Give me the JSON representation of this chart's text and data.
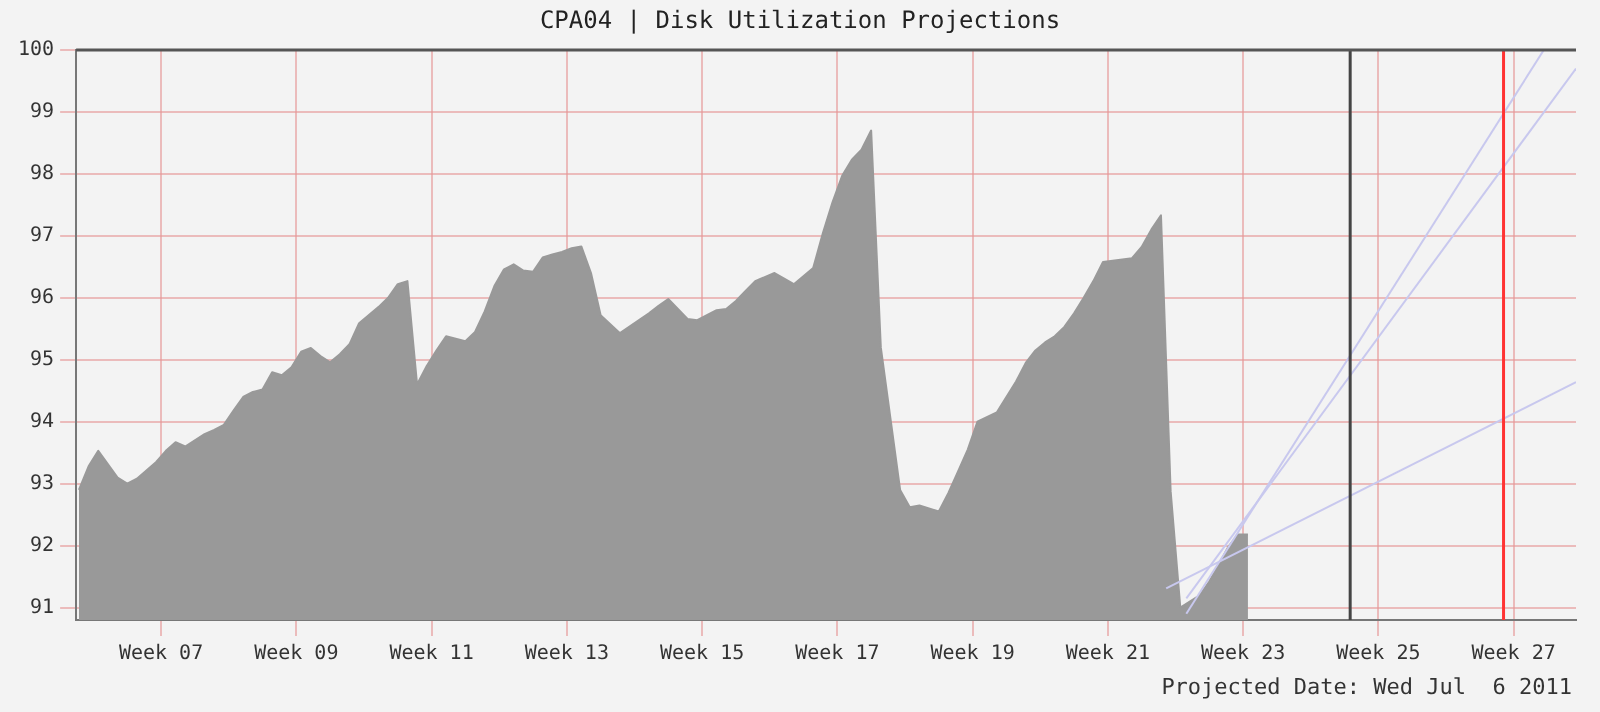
{
  "chart_data": {
    "type": "line",
    "title": "CPA04 | Disk Utilization Projections",
    "annotations": [
      "Projected Date: Wed Jul  6 2011"
    ],
    "xlim": [
      "2011-02-08T17:00",
      "2011-07-13T23:00"
    ],
    "xticks": [
      {
        "value": "2011-02-17T12:00",
        "label": "Week 07"
      },
      {
        "value": "2011-03-03T12:00",
        "label": "Week 09"
      },
      {
        "value": "2011-03-17T12:00",
        "label": "Week 11"
      },
      {
        "value": "2011-03-31T12:00",
        "label": "Week 13"
      },
      {
        "value": "2011-04-14T12:00",
        "label": "Week 15"
      },
      {
        "value": "2011-04-28T12:00",
        "label": "Week 17"
      },
      {
        "value": "2011-05-12T12:00",
        "label": "Week 19"
      },
      {
        "value": "2011-05-26T12:00",
        "label": "Week 21"
      },
      {
        "value": "2011-06-09T12:00",
        "label": "Week 23"
      },
      {
        "value": "2011-06-23T12:00",
        "label": "Week 25"
      },
      {
        "value": "2011-07-07T12:00",
        "label": "Week 27"
      }
    ],
    "ylim": [
      90.8,
      100
    ],
    "yticks": [
      91,
      92,
      93,
      94,
      95,
      96,
      97,
      98,
      99,
      100
    ],
    "grid": true,
    "legend": false,
    "marker": "none",
    "ref_lines": [
      {
        "axis": "x",
        "value": "2011-06-20T14:00",
        "color": "#444444"
      },
      {
        "axis": "x",
        "value": "2011-07-06T11:00",
        "color": "#ff3333"
      },
      {
        "axis": "y",
        "value": 100,
        "color": "#555555"
      }
    ],
    "series": [
      {
        "type": "area",
        "color": "#999999",
        "x": [
          "2011-02-09",
          "2011-02-10",
          "2011-02-11",
          "2011-02-13",
          "2011-02-14",
          "2011-02-15",
          "2011-02-17",
          "2011-02-18",
          "2011-02-19",
          "2011-02-20",
          "2011-02-22",
          "2011-02-23",
          "2011-02-24",
          "2011-02-25",
          "2011-02-26",
          "2011-02-27",
          "2011-02-28",
          "2011-03-01",
          "2011-03-02",
          "2011-03-03",
          "2011-03-04",
          "2011-03-05",
          "2011-03-06",
          "2011-03-07",
          "2011-03-08",
          "2011-03-09",
          "2011-03-10",
          "2011-03-12",
          "2011-03-13",
          "2011-03-14",
          "2011-03-15",
          "2011-03-16",
          "2011-03-17",
          "2011-03-18",
          "2011-03-19",
          "2011-03-21",
          "2011-03-22",
          "2011-03-23",
          "2011-03-24",
          "2011-03-25",
          "2011-03-26",
          "2011-03-27",
          "2011-03-28",
          "2011-03-29",
          "2011-03-30",
          "2011-03-31",
          "2011-04-01",
          "2011-04-02",
          "2011-04-03",
          "2011-04-04",
          "2011-04-06",
          "2011-04-09",
          "2011-04-10",
          "2011-04-11",
          "2011-04-13",
          "2011-04-14",
          "2011-04-16",
          "2011-04-17",
          "2011-04-18",
          "2011-04-19",
          "2011-04-20",
          "2011-04-22",
          "2011-04-24",
          "2011-04-26",
          "2011-04-27",
          "2011-04-28",
          "2011-04-29",
          "2011-04-30",
          "2011-05-01",
          "2011-05-02",
          "2011-05-03",
          "2011-05-05",
          "2011-05-06",
          "2011-05-07",
          "2011-05-09",
          "2011-05-10",
          "2011-05-11",
          "2011-05-12",
          "2011-05-13",
          "2011-05-15",
          "2011-05-16",
          "2011-05-17",
          "2011-05-18",
          "2011-05-19",
          "2011-05-20",
          "2011-05-21",
          "2011-05-22",
          "2011-05-23",
          "2011-05-24",
          "2011-05-25",
          "2011-05-26",
          "2011-05-29",
          "2011-05-30",
          "2011-05-31",
          "2011-06-01",
          "2011-06-02",
          "2011-06-03",
          "2011-06-05",
          "2011-06-06",
          "2011-06-07",
          "2011-06-08",
          "2011-06-09",
          "2011-06-10"
        ],
        "values": [
          92.9,
          93.28,
          93.53,
          93.1,
          93.0,
          93.08,
          93.35,
          93.53,
          93.67,
          93.6,
          93.8,
          93.87,
          93.95,
          94.18,
          94.4,
          94.48,
          94.52,
          94.8,
          94.75,
          94.88,
          95.13,
          95.19,
          95.06,
          94.96,
          95.09,
          95.25,
          95.59,
          95.85,
          96.0,
          96.22,
          96.27,
          94.6,
          94.9,
          95.15,
          95.38,
          95.3,
          95.45,
          95.78,
          96.19,
          96.46,
          96.54,
          96.44,
          96.42,
          96.65,
          96.7,
          96.74,
          96.8,
          96.83,
          96.4,
          95.72,
          95.43,
          95.75,
          95.87,
          95.98,
          95.66,
          95.64,
          95.8,
          95.82,
          95.95,
          96.11,
          96.27,
          96.4,
          96.22,
          96.48,
          97.04,
          97.54,
          97.97,
          98.23,
          98.39,
          98.7,
          95.2,
          92.9,
          92.62,
          92.65,
          92.55,
          92.85,
          93.2,
          93.55,
          94.0,
          94.15,
          94.4,
          94.65,
          94.95,
          95.15,
          95.28,
          95.38,
          95.53,
          95.75,
          96.0,
          96.27,
          96.58,
          96.64,
          96.82,
          97.1,
          97.33,
          92.88,
          91.0,
          91.2,
          91.42,
          91.7,
          91.99,
          92.18,
          92.18
        ]
      },
      {
        "type": "line",
        "color": "#c8c8ee",
        "x": [
          "2011-06-01T13:00",
          "2011-07-13T23:00"
        ],
        "values": [
          91.31,
          94.64
        ]
      },
      {
        "type": "line",
        "color": "#c8c8ee",
        "x": [
          "2011-06-03T15:00",
          "2011-07-10T15:00"
        ],
        "values": [
          90.9,
          100
        ]
      },
      {
        "type": "line",
        "color": "#c8c8ee",
        "x": [
          "2011-06-03T15:00",
          "2011-07-13T23:00"
        ],
        "values": [
          91.15,
          99.7
        ]
      }
    ]
  }
}
